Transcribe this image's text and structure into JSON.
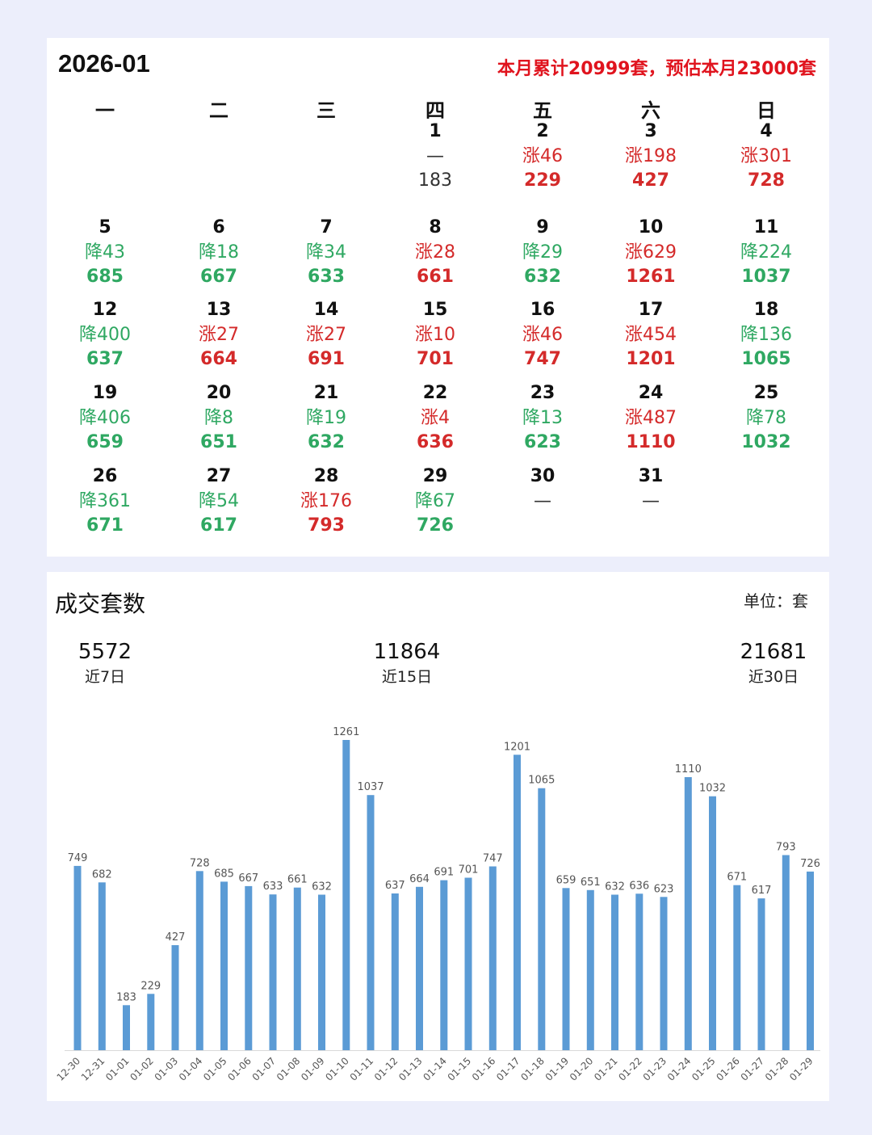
{
  "calendar": {
    "month": "2026-01",
    "summary": "本月累计20999套，预估本月23000套",
    "weekdays": [
      "一",
      "二",
      "三",
      "四",
      "五",
      "六",
      "日"
    ],
    "days": [
      {
        "day": "1",
        "change": "—",
        "total": "183",
        "trend": "none"
      },
      {
        "day": "2",
        "change": "涨46",
        "total": "229",
        "trend": "up"
      },
      {
        "day": "3",
        "change": "涨198",
        "total": "427",
        "trend": "up"
      },
      {
        "day": "4",
        "change": "涨301",
        "total": "728",
        "trend": "up"
      },
      {
        "day": "5",
        "change": "降43",
        "total": "685",
        "trend": "down"
      },
      {
        "day": "6",
        "change": "降18",
        "total": "667",
        "trend": "down"
      },
      {
        "day": "7",
        "change": "降34",
        "total": "633",
        "trend": "down"
      },
      {
        "day": "8",
        "change": "涨28",
        "total": "661",
        "trend": "up"
      },
      {
        "day": "9",
        "change": "降29",
        "total": "632",
        "trend": "down"
      },
      {
        "day": "10",
        "change": "涨629",
        "total": "1261",
        "trend": "up"
      },
      {
        "day": "11",
        "change": "降224",
        "total": "1037",
        "trend": "down"
      },
      {
        "day": "12",
        "change": "降400",
        "total": "637",
        "trend": "down"
      },
      {
        "day": "13",
        "change": "涨27",
        "total": "664",
        "trend": "up"
      },
      {
        "day": "14",
        "change": "涨27",
        "total": "691",
        "trend": "up"
      },
      {
        "day": "15",
        "change": "涨10",
        "total": "701",
        "trend": "up"
      },
      {
        "day": "16",
        "change": "涨46",
        "total": "747",
        "trend": "up"
      },
      {
        "day": "17",
        "change": "涨454",
        "total": "1201",
        "trend": "up"
      },
      {
        "day": "18",
        "change": "降136",
        "total": "1065",
        "trend": "down"
      },
      {
        "day": "19",
        "change": "降406",
        "total": "659",
        "trend": "down"
      },
      {
        "day": "20",
        "change": "降8",
        "total": "651",
        "trend": "down"
      },
      {
        "day": "21",
        "change": "降19",
        "total": "632",
        "trend": "down"
      },
      {
        "day": "22",
        "change": "涨4",
        "total": "636",
        "trend": "up"
      },
      {
        "day": "23",
        "change": "降13",
        "total": "623",
        "trend": "down"
      },
      {
        "day": "24",
        "change": "涨487",
        "total": "1110",
        "trend": "up"
      },
      {
        "day": "25",
        "change": "降78",
        "total": "1032",
        "trend": "down"
      },
      {
        "day": "26",
        "change": "降361",
        "total": "671",
        "trend": "down"
      },
      {
        "day": "27",
        "change": "降54",
        "total": "617",
        "trend": "down"
      },
      {
        "day": "28",
        "change": "涨176",
        "total": "793",
        "trend": "up"
      },
      {
        "day": "29",
        "change": "降67",
        "total": "726",
        "trend": "down"
      },
      {
        "day": "30",
        "change": "—",
        "total": "",
        "trend": "none"
      },
      {
        "day": "31",
        "change": "—",
        "total": "",
        "trend": "none"
      }
    ],
    "trend_colors": {
      "up": "#d42a2a",
      "down": "#2fa862",
      "none": "#333333"
    }
  },
  "chart_section": {
    "title": "成交套数",
    "unit": "单位：套",
    "stats": [
      {
        "value": "5572",
        "label": "近7日"
      },
      {
        "value": "11864",
        "label": "近15日"
      },
      {
        "value": "21681",
        "label": "近30日"
      }
    ]
  },
  "chart_data": {
    "type": "bar",
    "categories": [
      "12-30",
      "12-31",
      "01-01",
      "01-02",
      "01-03",
      "01-04",
      "01-05",
      "01-06",
      "01-07",
      "01-08",
      "01-09",
      "01-10",
      "01-11",
      "01-12",
      "01-13",
      "01-14",
      "01-15",
      "01-16",
      "01-17",
      "01-18",
      "01-19",
      "01-20",
      "01-21",
      "01-22",
      "01-23",
      "01-24",
      "01-25",
      "01-26",
      "01-27",
      "01-28",
      "01-29"
    ],
    "values": [
      749,
      682,
      183,
      229,
      427,
      728,
      685,
      667,
      633,
      661,
      632,
      1261,
      1037,
      637,
      664,
      691,
      701,
      747,
      1201,
      1065,
      659,
      651,
      632,
      636,
      623,
      1110,
      1032,
      671,
      617,
      793,
      726
    ],
    "title": "成交套数",
    "xlabel": "",
    "ylabel": "",
    "ylim": [
      0,
      1261
    ],
    "grid": false,
    "legend": "none",
    "bar_color": "#5b9bd5"
  }
}
